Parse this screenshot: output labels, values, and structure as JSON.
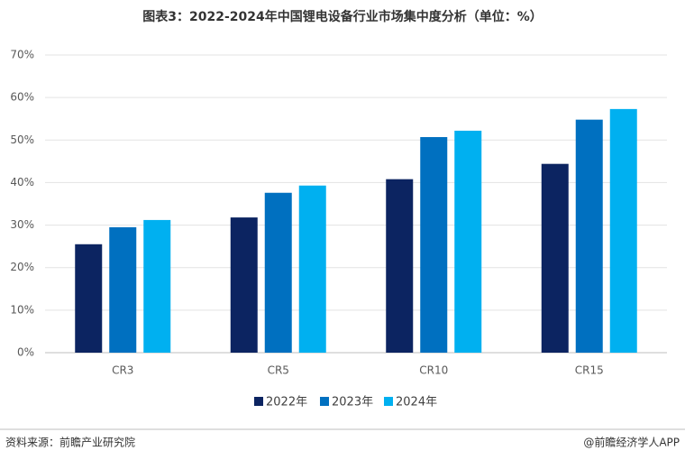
{
  "chart_data": {
    "type": "bar",
    "title": "图表3：2022-2024年中国锂电设备行业市场集中度分析（单位：%）",
    "categories": [
      "CR3",
      "CR5",
      "CR10",
      "CR15"
    ],
    "series": [
      {
        "name": "2022年",
        "color": "#0c2461",
        "values": [
          25.5,
          31.8,
          40.8,
          44.4
        ]
      },
      {
        "name": "2023年",
        "color": "#0070c0",
        "values": [
          29.5,
          37.6,
          50.7,
          54.8
        ]
      },
      {
        "name": "2024年",
        "color": "#00b0f0",
        "values": [
          31.2,
          39.3,
          52.2,
          57.3
        ]
      }
    ],
    "ylim": [
      0,
      70
    ],
    "yticks": [
      {
        "value": 0,
        "label": "0%"
      },
      {
        "value": 10,
        "label": "10%"
      },
      {
        "value": 20,
        "label": "20%"
      },
      {
        "value": 30,
        "label": "30%"
      },
      {
        "value": 40,
        "label": "40%"
      },
      {
        "value": 50,
        "label": "50%"
      },
      {
        "value": 60,
        "label": "60%"
      },
      {
        "value": 70,
        "label": "70%"
      }
    ],
    "grid": true,
    "legend": "bottom",
    "source": "资料来源：前瞻产业研究院",
    "credit": "@前瞻经济学人APP"
  }
}
